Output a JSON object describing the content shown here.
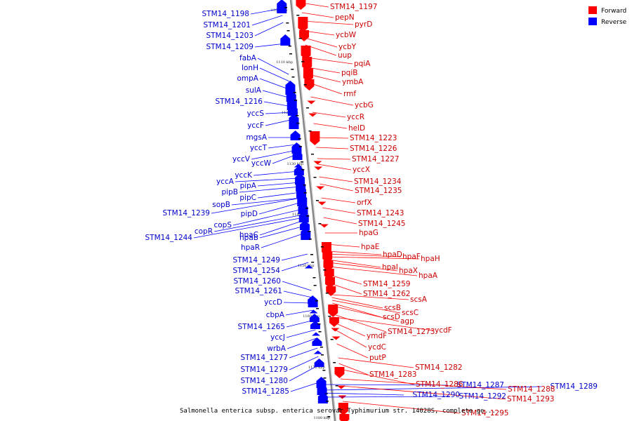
{
  "caption": "Salmonella enterica subsp. enterica serovar Typhimurium str. 14028S, complete ge...",
  "legend": [
    {
      "label": "Forward",
      "color": "#ff0000"
    },
    {
      "label": "Reverse",
      "color": "#0000ff"
    }
  ],
  "colors": {
    "forward": "#ff0000",
    "reverse": "#0000ff",
    "forward_text": "#cc0000",
    "reverse_text": "#0000cc",
    "axis": "#888888"
  },
  "ticks": [
    "1100 kbp",
    "1110 kbp",
    "1120 kbp",
    "1130 kbp",
    "1140 kbp",
    "1150 kbp",
    "1160 kbp",
    "1170 kbp",
    "1180 kbp"
  ],
  "reverse_genes": [
    "STM14_1198",
    "STM14_1201",
    "STM14_1203",
    "STM14_1209",
    "fabA",
    "lonH",
    "ompA",
    "sulA",
    "STM14_1216",
    "yccS",
    "yccF",
    "mgsA",
    "yccT",
    "yccV",
    "yccW",
    "yccK",
    "yccA",
    "pipA",
    "pipB",
    "pipC",
    "sopB",
    "STM14_1239",
    "pipD",
    "copS",
    "copR",
    "hpaC",
    "STM14_1244",
    "hpaB",
    "hpaR",
    "STM14_1249",
    "STM14_1254",
    "STM14_1260",
    "STM14_1261",
    "yccD",
    "cbpA",
    "STM14_1265",
    "yccJ",
    "wrbA",
    "STM14_1277",
    "STM14_1279",
    "STM14_1280",
    "STM14_1285",
    "STM14_1287",
    "STM14_1289",
    "STM14_1290",
    "STM14_1292"
  ],
  "forward_genes": [
    "STM14_1197",
    "pepN",
    "pyrD",
    "ycbW",
    "ycbY",
    "uup",
    "pqiA",
    "pqiB",
    "ymbA",
    "rmf",
    "ycbG",
    "yccR",
    "helD",
    "STM14_1223",
    "STM14_1226",
    "STM14_1227",
    "yccX",
    "STM14_1234",
    "STM14_1235",
    "orfX",
    "STM14_1243",
    "STM14_1245",
    "hpaG",
    "hpaE",
    "hpaD",
    "hpaF",
    "hpaH",
    "hpaI",
    "hpaX",
    "hpaA",
    "STM14_1259",
    "STM14_1262",
    "scsA",
    "scsB",
    "scsC",
    "scsD",
    "agp",
    "STM14_1273",
    "ycdF",
    "ymdF",
    "ycdC",
    "putP",
    "STM14_1282",
    "STM14_1283",
    "STM14_1286",
    "STM14_1288",
    "STM14_1293",
    "STM14_1295"
  ]
}
